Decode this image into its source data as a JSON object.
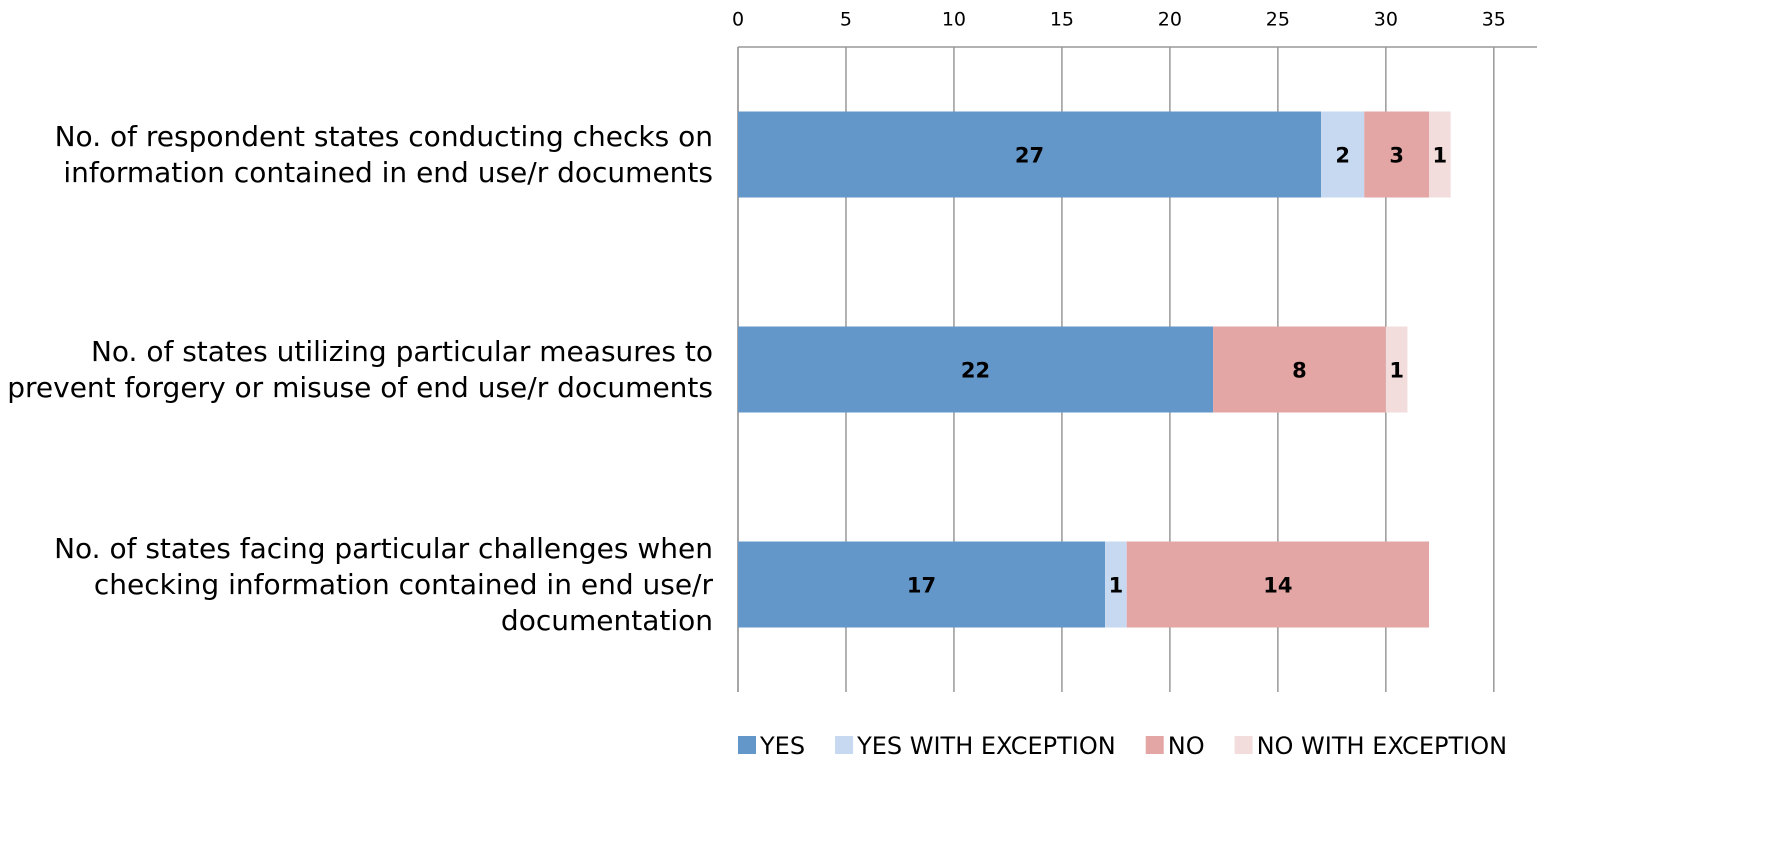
{
  "chart_data": {
    "type": "stacked_bar_horizontal",
    "categories": [
      "No. of respondent states conducting checks on information contained in end use/r documents",
      "No. of states utilizing particular measures to prevent forgery or misuse of end use/r documents",
      "No. of states facing particular challenges when checking information contained in end use/r documentation"
    ],
    "series": [
      {
        "name": "YES",
        "color": "#6497c9",
        "values": [
          27,
          22,
          17
        ]
      },
      {
        "name": "YES WITH EXCEPTION",
        "color": "#c6d9f0",
        "values": [
          2,
          null,
          1
        ]
      },
      {
        "name": "NO",
        "color": "#e3a6a5",
        "values": [
          3,
          8,
          14
        ]
      },
      {
        "name": "NO WITH EXCEPTION",
        "color": "#f3dcdc",
        "values": [
          1,
          1,
          null
        ]
      }
    ],
    "xlim": [
      0,
      37
    ],
    "xticks": [
      0,
      5,
      10,
      15,
      20,
      25,
      30,
      35
    ],
    "grid": true,
    "legend": "bottom"
  }
}
